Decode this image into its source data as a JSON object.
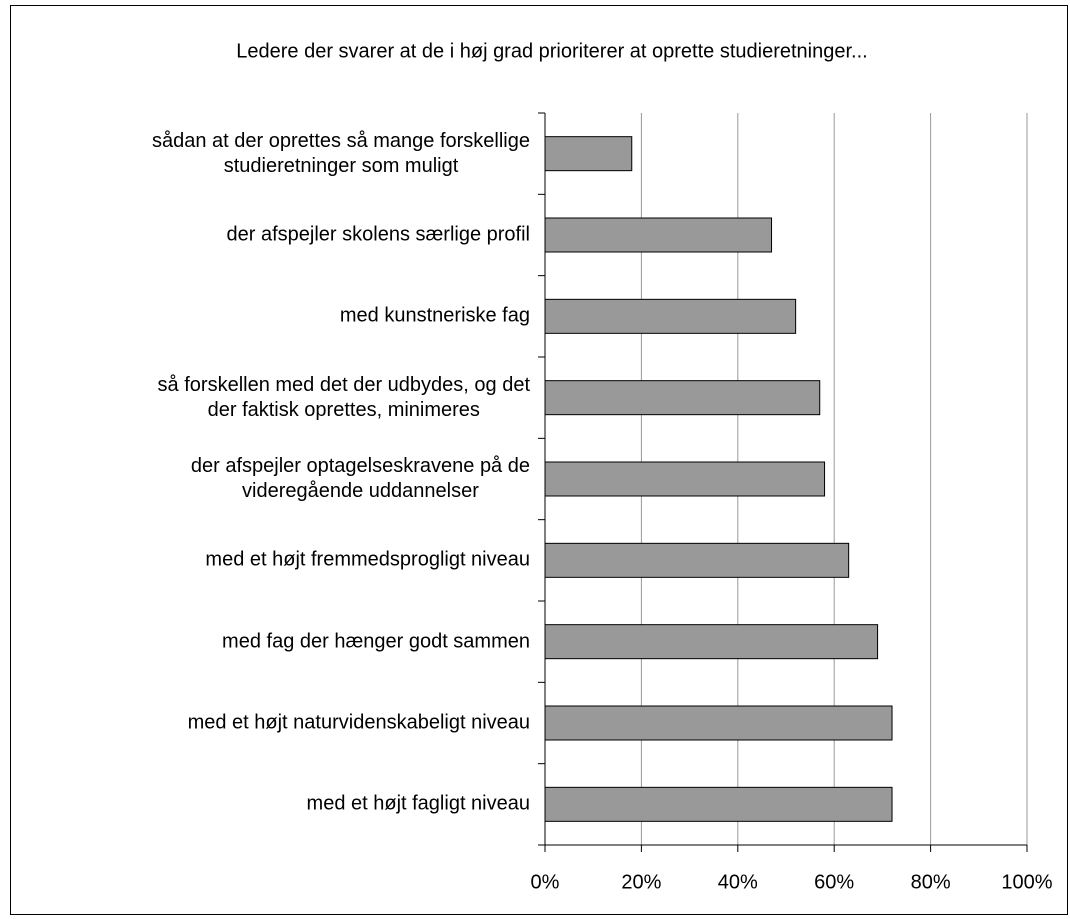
{
  "chart_data": {
    "type": "barh",
    "title": "Ledere der svarer at de i høj grad prioriterer at oprette studieretninger...",
    "categories": [
      "sådan at der oprettes så mange forskellige\nstudieretninger som muligt",
      "der afspejler skolens særlige profil",
      "med kunstneriske fag",
      "så forskellen med det der udbydes, og det\nder faktisk oprettes, minimeres",
      "der afspejler optagelseskravene på de\nvideregående uddannelser",
      "med et højt fremmedsprogligt niveau",
      "med fag der hænger godt sammen",
      "med et højt naturvidenskabeligt niveau",
      "med et højt fagligt niveau"
    ],
    "values": [
      18,
      47,
      52,
      57,
      58,
      63,
      69,
      72,
      72
    ],
    "color": "#999999",
    "xlim": [
      0,
      100
    ],
    "xticks": [
      {
        "value": 0,
        "label": "0%"
      },
      {
        "value": 20,
        "label": "20%"
      },
      {
        "value": 40,
        "label": "40%"
      },
      {
        "value": 60,
        "label": "60%"
      },
      {
        "value": 80,
        "label": "80%"
      },
      {
        "value": 100,
        "label": "100%"
      }
    ],
    "grid": true
  }
}
